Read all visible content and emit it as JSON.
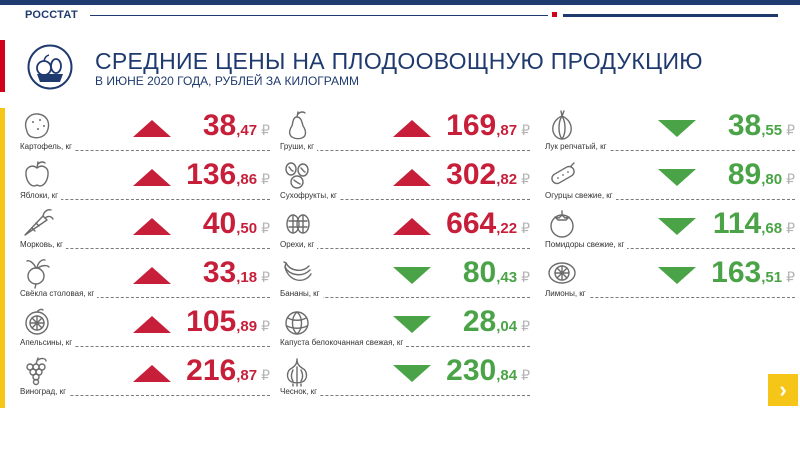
{
  "header": {
    "logo": "РОССТАТ",
    "title": "СРЕДНИЕ ЦЕНЫ НА ПЛОДООВОЩНУЮ ПРОДУКЦИЮ",
    "subtitle": "В ИЮНЕ 2020 ГОДА, РУБЛЕЙ ЗА КИЛОГРАММ"
  },
  "colors": {
    "up": "#c71f3a",
    "down": "#4aa447",
    "brand": "#1f3a6e",
    "accent": "#f5c518"
  },
  "items": [
    {
      "label": "Картофель, кг",
      "int": "38",
      "dec": ",47",
      "currency": "₽",
      "trend": "up",
      "icon": "potato-icon"
    },
    {
      "label": "Яблоки, кг",
      "int": "136",
      "dec": ",86",
      "currency": "₽",
      "trend": "up",
      "icon": "apple-icon"
    },
    {
      "label": "Морковь, кг",
      "int": "40",
      "dec": ",50",
      "currency": "₽",
      "trend": "up",
      "icon": "carrot-icon"
    },
    {
      "label": "Свёкла столовая, кг",
      "int": "33",
      "dec": ",18",
      "currency": "₽",
      "trend": "up",
      "icon": "beet-icon"
    },
    {
      "label": "Апельсины, кг",
      "int": "105",
      "dec": ",89",
      "currency": "₽",
      "trend": "up",
      "icon": "orange-icon"
    },
    {
      "label": "Виноград, кг",
      "int": "216",
      "dec": ",87",
      "currency": "₽",
      "trend": "up",
      "icon": "grapes-icon"
    },
    {
      "label": "Груши, кг",
      "int": "169",
      "dec": ",87",
      "currency": "₽",
      "trend": "up",
      "icon": "pear-icon"
    },
    {
      "label": "Сухофрукты, кг",
      "int": "302",
      "dec": ",82",
      "currency": "₽",
      "trend": "up",
      "icon": "dried-fruit-icon"
    },
    {
      "label": "Орехи, кг",
      "int": "664",
      "dec": ",22",
      "currency": "₽",
      "trend": "up",
      "icon": "nut-icon"
    },
    {
      "label": "Бананы, кг",
      "int": "80",
      "dec": ",43",
      "currency": "₽",
      "trend": "down",
      "icon": "banana-icon"
    },
    {
      "label": "Капуста белокочанная свежая, кг",
      "int": "28",
      "dec": ",04",
      "currency": "₽",
      "trend": "down",
      "icon": "cabbage-icon"
    },
    {
      "label": "Чеснок, кг",
      "int": "230",
      "dec": ",84",
      "currency": "₽",
      "trend": "down",
      "icon": "garlic-icon"
    },
    {
      "label": "Лук репчатый, кг",
      "int": "38",
      "dec": ",55",
      "currency": "₽",
      "trend": "down",
      "icon": "onion-icon"
    },
    {
      "label": "Огурцы свежие, кг",
      "int": "89",
      "dec": ",80",
      "currency": "₽",
      "trend": "down",
      "icon": "cucumber-icon"
    },
    {
      "label": "Помидоры свежие, кг",
      "int": "114",
      "dec": ",68",
      "currency": "₽",
      "trend": "down",
      "icon": "tomato-icon"
    },
    {
      "label": "Лимоны, кг",
      "int": "163",
      "dec": ",51",
      "currency": "₽",
      "trend": "down",
      "icon": "lemon-icon"
    }
  ],
  "nav": {
    "next_label": "›",
    "next_icon": "chevron-right-icon"
  }
}
